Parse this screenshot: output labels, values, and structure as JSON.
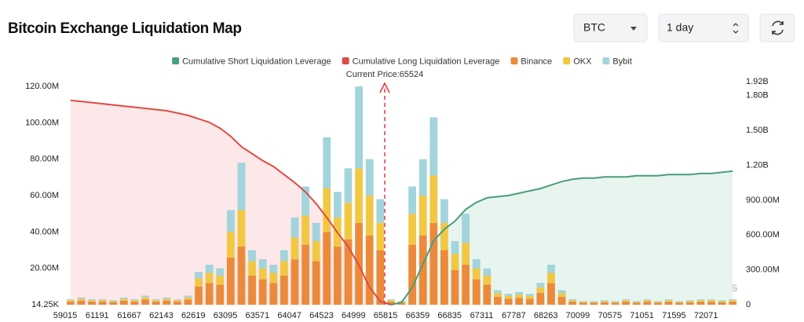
{
  "header": {
    "title": "Bitcoin Exchange Liquidation Map",
    "symbol_select": "BTC",
    "range_select": "1 day"
  },
  "chart_data": {
    "type": "bar",
    "stacked": true,
    "annotation": "Current Price:65524",
    "watermark": "coinglass",
    "categories": [
      "59015",
      null,
      null,
      "61191",
      null,
      null,
      "61667",
      null,
      null,
      "62143",
      null,
      null,
      "62619",
      null,
      null,
      "63095",
      null,
      null,
      "63571",
      null,
      null,
      "64047",
      null,
      null,
      "64523",
      null,
      null,
      "64999",
      null,
      null,
      "65815",
      null,
      null,
      "66359",
      null,
      null,
      "66835",
      null,
      null,
      "67311",
      null,
      null,
      "67787",
      null,
      null,
      "68263",
      null,
      null,
      "70099",
      null,
      null,
      "70575",
      null,
      null,
      "71051",
      null,
      null,
      "71595",
      null,
      null,
      "72071",
      null,
      null
    ],
    "ylim": [
      14250,
      122600000
    ],
    "yticks": [
      {
        "value": 14250,
        "label": "14.25K"
      },
      {
        "value": 20000000,
        "label": "20.00M"
      },
      {
        "value": 40000000,
        "label": "40.00M"
      },
      {
        "value": 60000000,
        "label": "60.00M"
      },
      {
        "value": 80000000,
        "label": "80.00M"
      },
      {
        "value": 100000000,
        "label": "100.00M"
      },
      {
        "value": 120000000,
        "label": "120.00M"
      }
    ],
    "y2lim": [
      0,
      1920000000
    ],
    "y2ticks": [
      0,
      {
        "value": 300000000,
        "label": "300.00M"
      },
      {
        "value": 600000000,
        "label": "600.00M"
      },
      {
        "value": 900000000,
        "label": "900.00M"
      },
      {
        "value": 1200000000,
        "label": "1.20B"
      },
      {
        "value": 1500000000,
        "label": "1.50B"
      },
      {
        "value": 1800000000,
        "label": "1.80B"
      },
      {
        "value": 1920000000,
        "label": "1.92B"
      }
    ],
    "grid": false,
    "series": [
      {
        "name": "Cumulative Short Liquidation Leverage",
        "type": "line",
        "axis": "y2",
        "color": "#4a9e7c",
        "fill": "#e8f5ef",
        "values": [
          null,
          null,
          null,
          null,
          null,
          null,
          null,
          null,
          null,
          null,
          null,
          null,
          null,
          null,
          null,
          null,
          null,
          null,
          null,
          null,
          null,
          null,
          null,
          null,
          null,
          null,
          null,
          null,
          null,
          null,
          0,
          20000000.0,
          150000000.0,
          350000000.0,
          550000000.0,
          650000000.0,
          720000000.0,
          820000000.0,
          880000000.0,
          920000000.0,
          930000000.0,
          940000000.0,
          960000000.0,
          980000000.0,
          1000000000.0,
          1030000000.0,
          1060000000.0,
          1080000000.0,
          1090000000.0,
          1090000000.0,
          1100000000.0,
          1100000000.0,
          1100000000.0,
          1110000000.0,
          1110000000.0,
          1110000000.0,
          1120000000.0,
          1120000000.0,
          1120000000.0,
          1130000000.0,
          1130000000.0,
          1140000000.0,
          1150000000.0
        ]
      },
      {
        "name": "Cumulative Long Liquidation Leverage",
        "type": "line",
        "axis": "y2",
        "color": "#dc4d45",
        "fill": "#fce8e8",
        "values": [
          1760000000.0,
          1750000000.0,
          1740000000.0,
          1730000000.0,
          1720000000.0,
          1710000000.0,
          1700000000.0,
          1690000000.0,
          1680000000.0,
          1670000000.0,
          1650000000.0,
          1630000000.0,
          1600000000.0,
          1570000000.0,
          1520000000.0,
          1450000000.0,
          1360000000.0,
          1300000000.0,
          1240000000.0,
          1190000000.0,
          1120000000.0,
          1050000000.0,
          970000000.0,
          870000000.0,
          750000000.0,
          620000000.0,
          500000000.0,
          340000000.0,
          150000000.0,
          30000000.0,
          0,
          null,
          null,
          null,
          null,
          null,
          null,
          null,
          null,
          null,
          null,
          null,
          null,
          null,
          null,
          null,
          null,
          null,
          null,
          null,
          null,
          null,
          null,
          null,
          null,
          null,
          null,
          null,
          null,
          null,
          null,
          null,
          null
        ]
      },
      {
        "name": "Binance",
        "type": "bar",
        "color": "#ec8a3c",
        "values": [
          1700000.0,
          2200000.0,
          1700000.0,
          1700000.0,
          1400000.0,
          2200000.0,
          1700000.0,
          2800000.0,
          1700000.0,
          2200000.0,
          1700000.0,
          2800000.0,
          10000000.0,
          12000000.0,
          11000000.0,
          26000000.0,
          32000000.0,
          16000000.0,
          14000000.0,
          12000000.0,
          16000000.0,
          25000000.0,
          33000000.0,
          24000000.0,
          40000000.0,
          32000000.0,
          36000000.0,
          45000000.0,
          38000000.0,
          30000000.0,
          1700000.0,
          1100000.0,
          33000000.0,
          38000000.0,
          45000000.0,
          30000000.0,
          19000000.0,
          22000000.0,
          14000000.0,
          11000000.0,
          4400000.0,
          3300000.0,
          3800000.0,
          3300000.0,
          6600000.0,
          12000000.0,
          4400000.0,
          1700000.0,
          1100000.0,
          1100000.0,
          1400000.0,
          1100000.0,
          1700000.0,
          1100000.0,
          1700000.0,
          1100000.0,
          1700000.0,
          1100000.0,
          1400000.0,
          1700000.0,
          1700000.0,
          1400000.0,
          1700000.0
        ]
      },
      {
        "name": "OKX",
        "type": "bar",
        "color": "#f2c744",
        "values": [
          800000.0,
          1000000.0,
          800000.0,
          800000.0,
          600000.0,
          1000000.0,
          800000.0,
          1200000.0,
          800000.0,
          1000000.0,
          800000.0,
          1200000.0,
          4500000.0,
          5500000.0,
          5000000.0,
          14000000.0,
          20000000.0,
          8000000.0,
          6000000.0,
          5500000.0,
          8000000.0,
          12000000.0,
          16000000.0,
          11000000.0,
          24000000.0,
          16000000.0,
          20000000.0,
          30000000.0,
          22000000.0,
          15000000.0,
          800000.0,
          500000.0,
          17000000.0,
          22000000.0,
          26000000.0,
          15000000.0,
          9000000.0,
          12000000.0,
          6000000.0,
          5000000.0,
          2000000.0,
          1500000.0,
          1800000.0,
          1500000.0,
          3000000.0,
          5500000.0,
          2000000.0,
          800000.0,
          500000.0,
          500000.0,
          600000.0,
          500000.0,
          800000.0,
          500000.0,
          800000.0,
          500000.0,
          800000.0,
          500000.0,
          600000.0,
          800000.0,
          800000.0,
          600000.0,
          800000.0
        ]
      },
      {
        "name": "Bybit",
        "type": "bar",
        "color": "#a2d4dc",
        "values": [
          500000.0,
          800000.0,
          500000.0,
          500000.0,
          500000.0,
          800000.0,
          500000.0,
          1000000.0,
          500000.0,
          800000.0,
          500000.0,
          1000000.0,
          3500000.0,
          4500000.0,
          4000000.0,
          12000000.0,
          26000000.0,
          6000000.0,
          5000000.0,
          4500000.0,
          6000000.0,
          11000000.0,
          16000000.0,
          10000000.0,
          28000000.0,
          14000000.0,
          19000000.0,
          45000000.0,
          20000000.0,
          13000000.0,
          500000.0,
          400000.0,
          15000000.0,
          20000000.0,
          32000000.0,
          13000000.0,
          7000000.0,
          16000000.0,
          5000000.0,
          4000000.0,
          1600000.0,
          1200000.0,
          1400000.0,
          1200000.0,
          2400000.0,
          4500000.0,
          1600000.0,
          500000.0,
          400000.0,
          400000.0,
          500000.0,
          400000.0,
          500000.0,
          400000.0,
          500000.0,
          400000.0,
          500000.0,
          400000.0,
          500000.0,
          500000.0,
          500000.0,
          500000.0,
          500000.0
        ]
      }
    ]
  }
}
